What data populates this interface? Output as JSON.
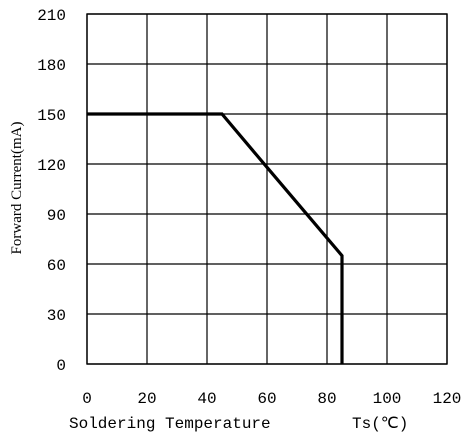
{
  "chart_data": {
    "type": "line",
    "xlabel": "Soldering Temperature",
    "xlabel_unit": "Ts(℃)",
    "ylabel": "Forward Current(mA)",
    "xlim": [
      0,
      120
    ],
    "ylim": [
      0,
      210
    ],
    "x_ticks": [
      0,
      20,
      40,
      60,
      80,
      100,
      120
    ],
    "y_ticks": [
      0,
      30,
      60,
      90,
      120,
      150,
      180,
      210
    ],
    "x_tick_labels": [
      "0",
      "20",
      "40",
      "60",
      "80",
      "100",
      "120"
    ],
    "y_tick_labels": [
      "0",
      "30",
      "60",
      "90",
      "120",
      "150",
      "180",
      "210"
    ],
    "grid": true,
    "colors": {
      "line": "#000000",
      "grid": "#000000",
      "background": "#ffffff"
    },
    "series": [
      {
        "points": [
          {
            "x": 0,
            "y": 150
          },
          {
            "x": 45,
            "y": 150
          },
          {
            "x": 60,
            "y": 118
          },
          {
            "x": 85,
            "y": 65
          },
          {
            "x": 85,
            "y": 0
          }
        ]
      }
    ]
  }
}
